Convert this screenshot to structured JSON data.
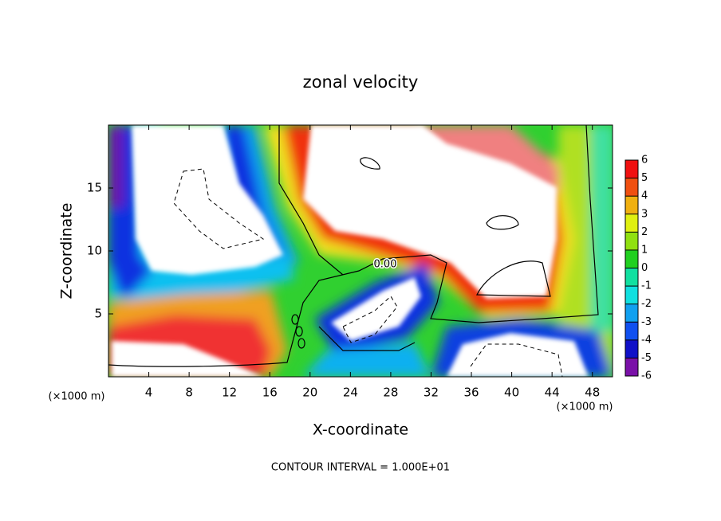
{
  "chart_data": {
    "type": "contour",
    "title": "zonal velocity",
    "x_label": "X-coordinate",
    "y_label": "Z-coordinate",
    "x_units": "(×1000 m)",
    "footnote": "CONTOUR INTERVAL = 1.000E+01",
    "contour_label": "0.00",
    "xlim": [
      0,
      50
    ],
    "xticks": [
      4,
      8,
      12,
      16,
      20,
      24,
      28,
      32,
      36,
      40,
      44,
      48
    ],
    "ylim": [
      0,
      20
    ],
    "yticks": [
      5,
      10,
      15
    ],
    "colorbar": {
      "levels": [
        -6,
        -5,
        -4,
        -3,
        -2,
        -1,
        0,
        1,
        2,
        3,
        4,
        5,
        6
      ],
      "colors": [
        "#7a10a8",
        "#1010c8",
        "#1050f0",
        "#10a0f0",
        "#10e0e0",
        "#10e0a0",
        "#20d020",
        "#90e010",
        "#e0f010",
        "#f0b010",
        "#f05010",
        "#f01010",
        "#f08080"
      ]
    }
  }
}
